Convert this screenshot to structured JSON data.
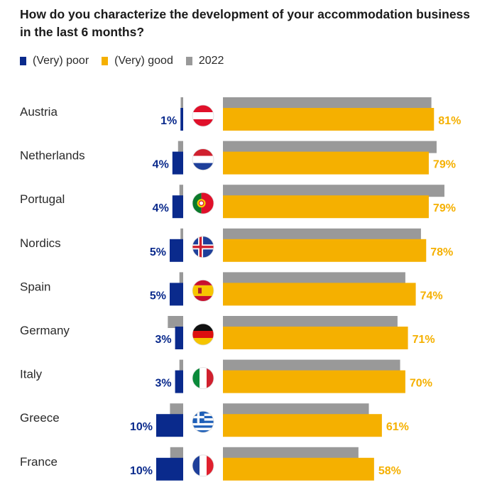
{
  "chart_data": {
    "type": "bar",
    "title": "How do you characterize the development of your accommodation business in the last 6 months?",
    "legend": {
      "position": "top-left"
    },
    "series": [
      {
        "name": "(Very) poor",
        "color": "#0a2a8c",
        "values": [
          1,
          4,
          4,
          5,
          5,
          3,
          3,
          10,
          10
        ],
        "prior_2022": [
          0.6,
          1.9,
          1.4,
          1.0,
          1.4,
          5.7,
          1.4,
          4.9,
          4.8
        ]
      },
      {
        "name": "(Very) good",
        "color": "#f5b000",
        "values": [
          81,
          79,
          79,
          78,
          74,
          71,
          70,
          61,
          58
        ],
        "prior_2022": [
          80,
          82,
          85,
          76,
          70,
          67,
          68,
          56,
          52
        ]
      },
      {
        "name": "2022",
        "color": "#999999"
      }
    ],
    "categories": [
      "Austria",
      "Netherlands",
      "Portugal",
      "Nordics",
      "Spain",
      "Germany",
      "Italy",
      "Greece",
      "France"
    ],
    "flags": [
      "austria-flag-icon",
      "netherlands-flag-icon",
      "portugal-flag-icon",
      "nordics-flag-icon",
      "spain-flag-icon",
      "germany-flag-icon",
      "italy-flag-icon",
      "greece-flag-icon",
      "france-flag-icon"
    ],
    "value_suffix": "%"
  }
}
